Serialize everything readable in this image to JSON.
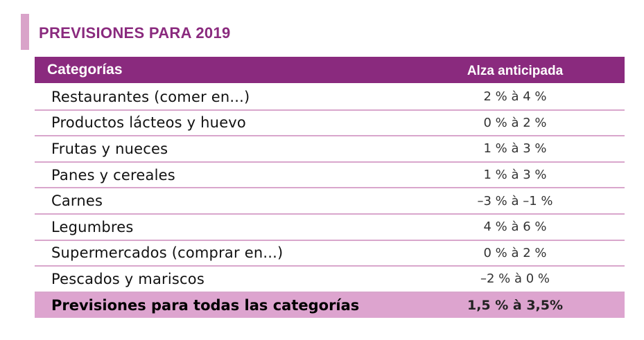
{
  "title": "PREVISIONES PARA 2019",
  "table": {
    "header": {
      "category": "Categorías",
      "value": "Alza anticipada"
    },
    "rows": [
      {
        "category": "Restaurantes  (comer en...)",
        "value": "2 % à 4 %"
      },
      {
        "category": "Productos lácteos y huevo",
        "value": "0 % à 2 %"
      },
      {
        "category": "Frutas y nueces",
        "value": "1 % à 3 %"
      },
      {
        "category": "Panes y cereales",
        "value": "1 % à 3 %"
      },
      {
        "category": "Carnes",
        "value": "–3 % à –1 %"
      },
      {
        "category": "Legumbres",
        "value": "4 % à 6 %"
      },
      {
        "category": "Supermercados (comprar en...)",
        "value": "0 % à 2 %"
      },
      {
        "category": "Pescados y mariscos",
        "value": "–2 % à 0 %"
      }
    ],
    "total": {
      "category": "Previsiones para todas las categorías",
      "value": "1,5 % à 3,5%"
    }
  },
  "colors": {
    "accent": "#8a2a7e",
    "header_background": "#8a2a7e",
    "total_background": "#dda4cf",
    "divider": "#d9a6cc",
    "side_bar": "#d9a3c9"
  }
}
